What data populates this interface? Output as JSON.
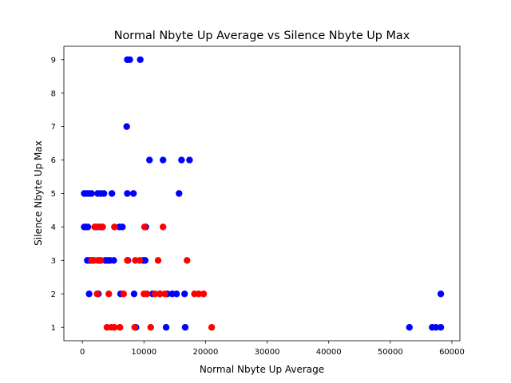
{
  "chart_data": {
    "type": "scatter",
    "title": "Normal Nbyte Up Average vs Silence Nbyte Up Max",
    "xlabel": "Normal Nbyte Up Average",
    "ylabel": "Silence Nbyte Up Max",
    "xlim": [
      -3000,
      61300
    ],
    "ylim": [
      0.6,
      9.4
    ],
    "xticks": [
      0,
      10000,
      20000,
      30000,
      40000,
      50000,
      60000
    ],
    "yticks": [
      1,
      2,
      3,
      4,
      5,
      6,
      7,
      8,
      9
    ],
    "grid": false,
    "legend": "none",
    "series": [
      {
        "color": "#0000ff",
        "points": [
          [
            7300,
            9
          ],
          [
            7700,
            9
          ],
          [
            9400,
            9
          ],
          [
            7200,
            7
          ],
          [
            10900,
            6
          ],
          [
            13100,
            6
          ],
          [
            16100,
            6
          ],
          [
            17400,
            6
          ],
          [
            300,
            5
          ],
          [
            700,
            5
          ],
          [
            1100,
            5
          ],
          [
            1500,
            5
          ],
          [
            2500,
            5
          ],
          [
            3000,
            5
          ],
          [
            3500,
            5
          ],
          [
            4800,
            5
          ],
          [
            7300,
            5
          ],
          [
            8300,
            5
          ],
          [
            15700,
            5
          ],
          [
            300,
            4
          ],
          [
            600,
            4
          ],
          [
            900,
            4
          ],
          [
            2200,
            4
          ],
          [
            3000,
            4
          ],
          [
            6000,
            4
          ],
          [
            6500,
            4
          ],
          [
            10300,
            4
          ],
          [
            800,
            3
          ],
          [
            1200,
            3
          ],
          [
            1600,
            3
          ],
          [
            2800,
            3
          ],
          [
            3700,
            3
          ],
          [
            4100,
            3
          ],
          [
            4500,
            3
          ],
          [
            5100,
            3
          ],
          [
            7400,
            3
          ],
          [
            9900,
            3
          ],
          [
            10200,
            3
          ],
          [
            1100,
            2
          ],
          [
            2600,
            2
          ],
          [
            6200,
            2
          ],
          [
            8400,
            2
          ],
          [
            11400,
            2
          ],
          [
            12600,
            2
          ],
          [
            13800,
            2
          ],
          [
            14600,
            2
          ],
          [
            15300,
            2
          ],
          [
            16600,
            2
          ],
          [
            58200,
            2
          ],
          [
            8700,
            1
          ],
          [
            13600,
            1
          ],
          [
            16700,
            1
          ],
          [
            53100,
            1
          ],
          [
            56800,
            1
          ],
          [
            57400,
            1
          ],
          [
            58200,
            1
          ]
        ]
      },
      {
        "color": "#ff0000",
        "points": [
          [
            2000,
            4
          ],
          [
            2600,
            4
          ],
          [
            3300,
            4
          ],
          [
            5200,
            4
          ],
          [
            10100,
            4
          ],
          [
            13100,
            4
          ],
          [
            1500,
            3
          ],
          [
            1900,
            3
          ],
          [
            2500,
            3
          ],
          [
            3000,
            3
          ],
          [
            7300,
            3
          ],
          [
            8600,
            3
          ],
          [
            9300,
            3
          ],
          [
            12300,
            3
          ],
          [
            17000,
            3
          ],
          [
            2400,
            2
          ],
          [
            4300,
            2
          ],
          [
            6700,
            2
          ],
          [
            10000,
            2
          ],
          [
            10500,
            2
          ],
          [
            11800,
            2
          ],
          [
            12600,
            2
          ],
          [
            13400,
            2
          ],
          [
            18200,
            2
          ],
          [
            18900,
            2
          ],
          [
            19700,
            2
          ],
          [
            4000,
            1
          ],
          [
            4700,
            1
          ],
          [
            5200,
            1
          ],
          [
            6100,
            1
          ],
          [
            8500,
            1
          ],
          [
            11100,
            1
          ],
          [
            21000,
            1
          ]
        ]
      }
    ]
  }
}
